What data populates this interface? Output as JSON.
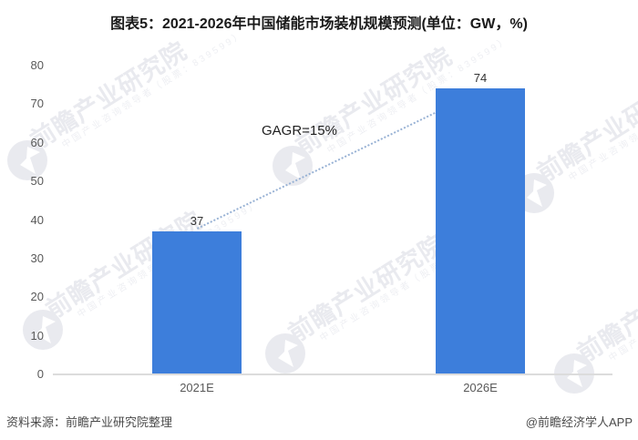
{
  "header": {
    "title": "图表5：2021-2026年中国储能市场装机规模预测(单位：GW，%)"
  },
  "chart_data": {
    "type": "bar",
    "title": "2021-2026年中国储能市场装机规模预测",
    "unit_label": "单位：GW，%",
    "categories": [
      "2021E",
      "2026E"
    ],
    "values": [
      37,
      74
    ],
    "value_labels": [
      "37",
      "74"
    ],
    "ylim": [
      0,
      80
    ],
    "yticks": [
      0,
      10,
      20,
      30,
      40,
      50,
      60,
      70,
      80
    ],
    "grid": false,
    "legend": false,
    "annotation": "GAGR=15%",
    "bar_color": "#3d7edb",
    "trend_color": "#97b1d4",
    "axis_color": "#dcdcdc",
    "tick_color": "#595959",
    "value_label_color": "#333333"
  },
  "watermark": {
    "brand": "前瞻产业研究院",
    "tagline": "中国产业咨询领导者（股票：839599）"
  },
  "footer": {
    "source": "资料来源：前瞻产业研究院整理",
    "credit": "@前瞻经济学人APP"
  }
}
